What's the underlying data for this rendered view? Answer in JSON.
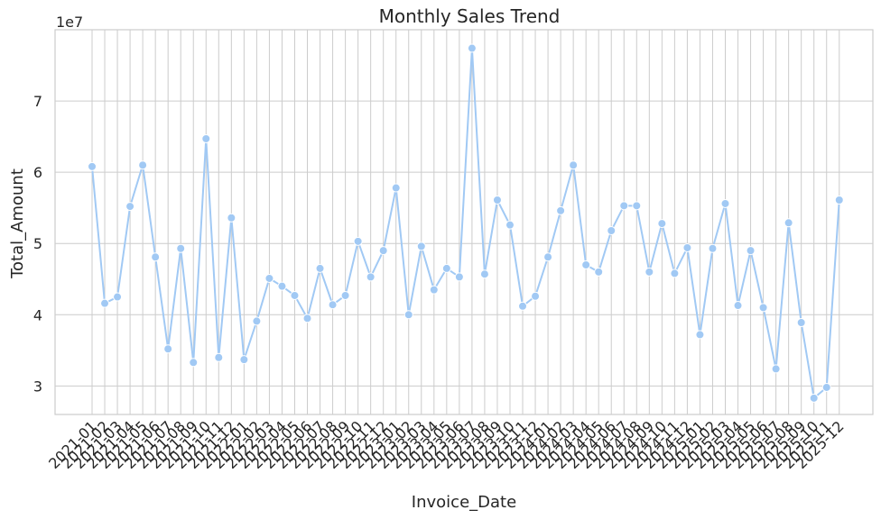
{
  "chart_data": {
    "type": "line",
    "title": "Monthly Sales Trend",
    "xlabel": "Invoice_Date",
    "ylabel": "Total_Amount",
    "y_multiplier_label": "1e7",
    "y_scale": 10000000,
    "ylim": [
      2.6,
      8.0
    ],
    "yticks": [
      3,
      4,
      5,
      6,
      7
    ],
    "grid": true,
    "line_color": "#a1c9f4",
    "grid_color": "#cccccc",
    "categories": [
      "2021-01",
      "2021-02",
      "2021-03",
      "2021-04",
      "2021-05",
      "2021-06",
      "2021-07",
      "2021-08",
      "2021-09",
      "2021-10",
      "2021-11",
      "2021-12",
      "2022-01",
      "2022-02",
      "2022-03",
      "2022-04",
      "2022-05",
      "2022-06",
      "2022-07",
      "2022-08",
      "2022-09",
      "2022-10",
      "2022-11",
      "2022-12",
      "2023-01",
      "2023-02",
      "2023-03",
      "2023-04",
      "2023-05",
      "2023-06",
      "2023-07",
      "2023-08",
      "2023-09",
      "2023-10",
      "2023-11",
      "2023-12",
      "2024-01",
      "2024-02",
      "2024-03",
      "2024-04",
      "2024-05",
      "2024-06",
      "2024-07",
      "2024-08",
      "2024-09",
      "2024-10",
      "2024-11",
      "2024-12",
      "2025-01",
      "2025-02",
      "2025-03",
      "2025-04",
      "2025-05",
      "2025-06",
      "2025-07",
      "2025-08",
      "2025-09",
      "2025-10",
      "2025-11",
      "2025-12"
    ],
    "values": [
      6.08,
      4.16,
      4.25,
      5.52,
      6.1,
      4.81,
      3.52,
      4.93,
      3.33,
      6.47,
      3.4,
      5.36,
      3.37,
      3.91,
      4.51,
      4.4,
      4.27,
      3.95,
      4.65,
      4.14,
      4.27,
      5.03,
      4.53,
      4.9,
      5.78,
      4.0,
      4.96,
      4.35,
      4.65,
      4.53,
      7.74,
      4.57,
      5.61,
      5.26,
      4.12,
      4.26,
      4.81,
      5.46,
      6.1,
      4.7,
      4.6,
      5.18,
      5.53,
      5.53,
      4.6,
      5.28,
      4.58,
      4.94,
      3.72,
      4.93,
      5.56,
      4.13,
      4.9,
      4.1,
      3.24,
      5.29,
      3.89,
      2.83,
      2.98,
      5.61
    ]
  }
}
